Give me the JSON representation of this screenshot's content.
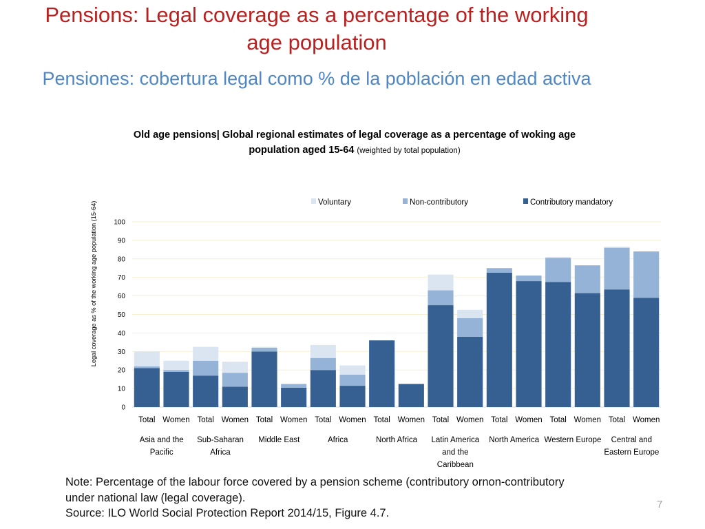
{
  "slide": {
    "title_en": "Pensions: Legal coverage as a percentage of the working age population",
    "title_es": "Pensiones: cobertura legal como % de la población en edad activa",
    "note": "Note: Percentage of the labour force covered by a pension scheme (contributory ornon-contributory under national law (legal coverage).",
    "source": "Source: ILO World Social Protection Report 2014/15, Figure 4.7.",
    "page_number": "7"
  },
  "chart_data": {
    "type": "bar",
    "stacked": true,
    "title": "Old age pensions| Global regional estimates of legal coverage as a percentage of woking age population aged 15-64",
    "title_suffix": "(weighted by total population)",
    "ylabel": "Legal coverage as % of the working age population (15-64)",
    "ylim": [
      0,
      100
    ],
    "yticks": [
      0,
      10,
      20,
      30,
      40,
      50,
      60,
      70,
      80,
      90,
      100
    ],
    "grid": true,
    "legend_position": "top",
    "colors": {
      "Voluntary": "#dbe5f1",
      "Non-contributory": "#95b3d7",
      "Contributory mandatory": "#366092"
    },
    "categories": [
      "Total",
      "Women",
      "Total",
      "Women",
      "Total",
      "Women",
      "Total",
      "Women",
      "Total",
      "Women",
      "Total",
      "Women",
      "Total",
      "Women",
      "Total",
      "Women",
      "Total",
      "Women"
    ],
    "groups": [
      {
        "label": "Asia and the Pacific",
        "lines": [
          "Asia and the",
          "Pacific"
        ]
      },
      {
        "label": "Sub-Saharan Africa",
        "lines": [
          "Sub-Saharan",
          "Africa"
        ]
      },
      {
        "label": "Middle East",
        "lines": [
          "Middle East"
        ]
      },
      {
        "label": "Africa",
        "lines": [
          "Africa"
        ]
      },
      {
        "label": "North Africa",
        "lines": [
          "North Africa"
        ]
      },
      {
        "label": "Latin America and the Caribbean",
        "lines": [
          "Latin America",
          "and the",
          "Caribbean"
        ]
      },
      {
        "label": "North America",
        "lines": [
          "North America"
        ]
      },
      {
        "label": "Western Europe",
        "lines": [
          "Western Europe"
        ]
      },
      {
        "label": "Central and Eastern Europe",
        "lines": [
          "Central and",
          "Eastern Europe"
        ]
      }
    ],
    "legend_order": [
      "Voluntary",
      "Non-contributory",
      "Contributory mandatory"
    ],
    "series": [
      {
        "name": "Contributory mandatory",
        "values": [
          21,
          19,
          17,
          11,
          30,
          10.5,
          20,
          11.5,
          36,
          12.5,
          55,
          38,
          72.5,
          68,
          67.5,
          61.5,
          63.5,
          59
        ]
      },
      {
        "name": "Non-contributory",
        "values": [
          1,
          1,
          8,
          7.5,
          2,
          2,
          6.5,
          6,
          0,
          0,
          8,
          10,
          2.5,
          3,
          13,
          15,
          22.5,
          25
        ]
      },
      {
        "name": "Voluntary",
        "values": [
          8,
          5,
          7.5,
          6,
          0.5,
          0,
          7,
          5,
          0,
          0,
          8.5,
          4.5,
          0,
          0,
          0.5,
          0,
          0.5,
          0
        ]
      }
    ]
  }
}
